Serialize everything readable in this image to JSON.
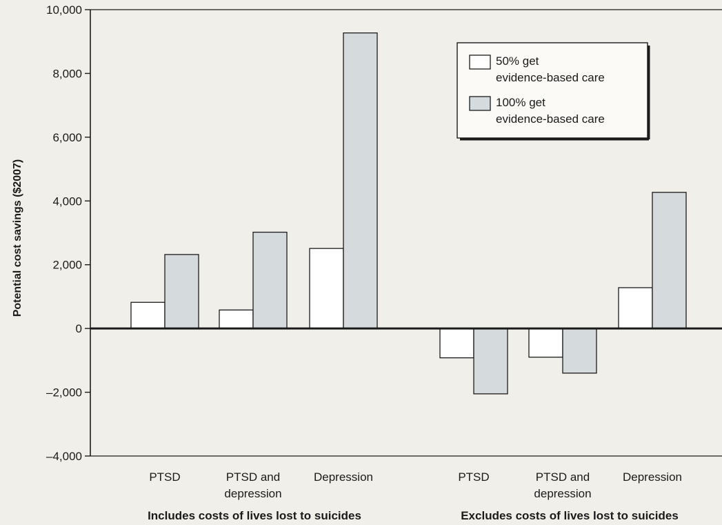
{
  "chart_data": {
    "type": "bar",
    "ylabel": "Potential cost savings ($2007)",
    "ylim": [
      -4000,
      10000
    ],
    "yticks": [
      "10,000",
      "8,000",
      "6,000",
      "4,000",
      "2,000",
      "0",
      "–2,000",
      "–4,000"
    ],
    "ytick_values": [
      10000,
      8000,
      6000,
      4000,
      2000,
      0,
      -2000,
      -4000
    ],
    "categories": [
      "PTSD",
      "PTSD and depression",
      "Depression",
      "PTSD",
      "PTSD and depression",
      "Depression"
    ],
    "category_lines": [
      [
        "PTSD"
      ],
      [
        "PTSD and",
        "depression"
      ],
      [
        "Depression"
      ],
      [
        "PTSD"
      ],
      [
        "PTSD and",
        "depression"
      ],
      [
        "Depression"
      ]
    ],
    "groups": [
      "Includes costs of lives lost to suicides",
      "Excludes costs of lives lost to suicides"
    ],
    "series": [
      {
        "name": "50% get evidence-based care",
        "legend_lines": [
          "50% get",
          "evidence-based care"
        ],
        "color": "#ffffff",
        "values": [
          820,
          580,
          2510,
          -920,
          -900,
          1280
        ]
      },
      {
        "name": "100% get evidence-based care",
        "legend_lines": [
          "100% get",
          "evidence-based care"
        ],
        "color": "#d5dadc",
        "values": [
          2320,
          3020,
          9270,
          -2050,
          -1400,
          4270
        ]
      }
    ],
    "legend_position": "top-right",
    "grid": false
  }
}
